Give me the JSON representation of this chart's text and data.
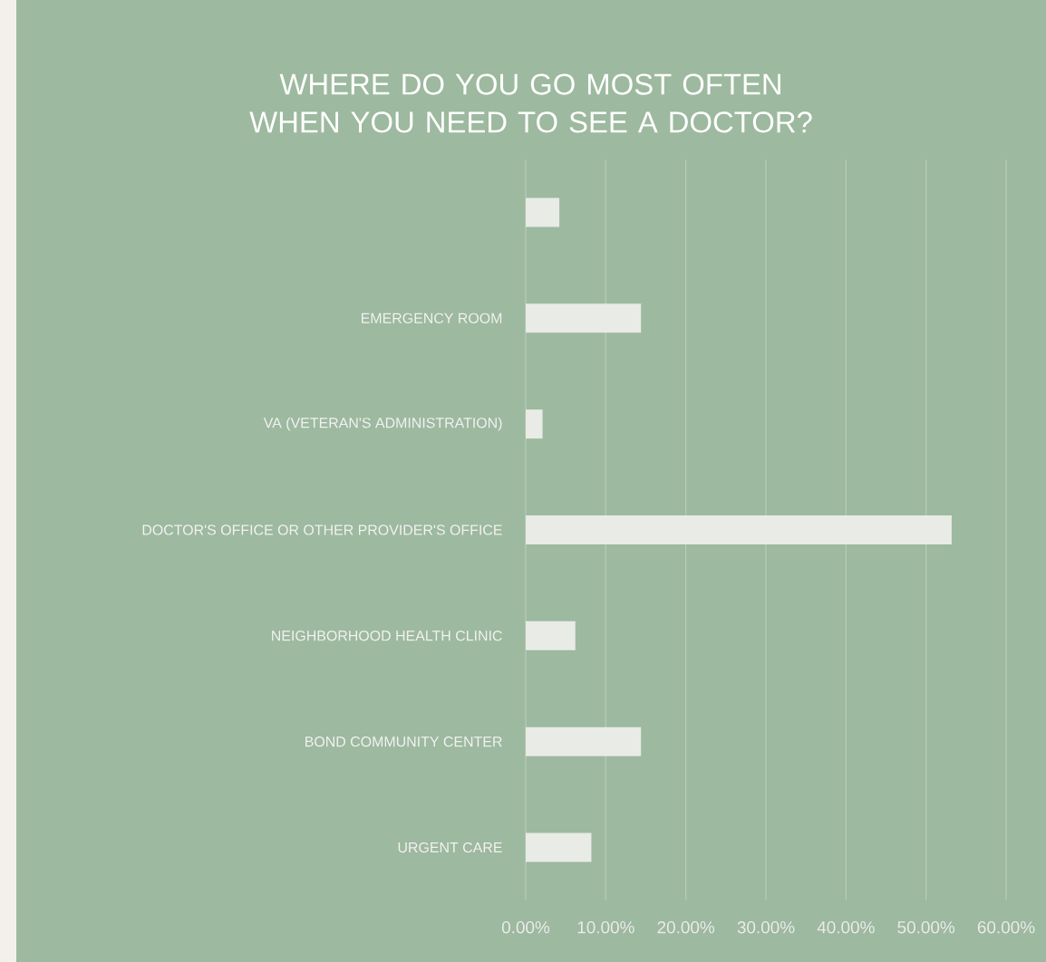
{
  "chart_data": {
    "type": "bar",
    "orientation": "horizontal",
    "title": "WHERE DO YOU GO MOST OFTEN WHEN YOU NEED TO SEE A DOCTOR?",
    "categories": [
      null,
      "EMERGENCY ROOM",
      "VA (VETERAN'S ADMINISTRATION)",
      "DOCTOR'S OFFICE OR OTHER PROVIDER'S OFFICE",
      "NEIGHBORHOOD HEALTH CLINIC",
      "BOND COMMUNITY CENTER",
      "URGENT CARE"
    ],
    "values": [
      4.2,
      14.4,
      2.1,
      53.2,
      6.2,
      14.4,
      8.2
    ],
    "color": "#e8ebe6",
    "xlim": [
      0,
      60
    ],
    "xticks": [
      {
        "value": 0,
        "label": "0.00%"
      },
      {
        "value": 10,
        "label": "10.00%"
      },
      {
        "value": 20,
        "label": "20.00%"
      },
      {
        "value": 30,
        "label": "30.00%"
      },
      {
        "value": 40,
        "label": "40.00%"
      },
      {
        "value": 50,
        "label": "50.00%"
      },
      {
        "value": 60,
        "label": "60.00%"
      }
    ],
    "grid": "x"
  }
}
